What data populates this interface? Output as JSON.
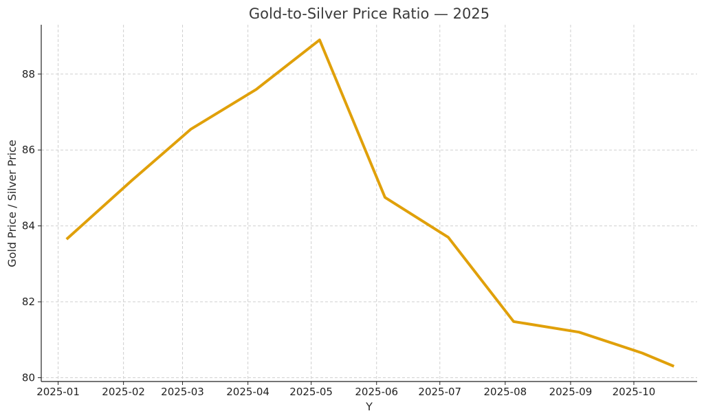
{
  "chart_data": {
    "type": "line",
    "title": "Gold-to-Silver Price Ratio — 2025",
    "xlabel": "Y",
    "ylabel": "Gold Price / Silver Price",
    "x_ticks": [
      "2025-01",
      "2025-02",
      "2025-03",
      "2025-04",
      "2025-05",
      "2025-06",
      "2025-07",
      "2025-08",
      "2025-09",
      "2025-10"
    ],
    "y_ticks": [
      80,
      82,
      84,
      86,
      88
    ],
    "ylim": [
      79.9,
      89.3
    ],
    "xlim": [
      "2024-12-24",
      "2025-10-31"
    ],
    "grid": true,
    "line_color": "#e0a00a",
    "series": [
      {
        "x": [
          "2025-01-05",
          "2025-02-05",
          "2025-03-05",
          "2025-04-05",
          "2025-05-05",
          "2025-06-05",
          "2025-07-05",
          "2025-08-05",
          "2025-09-05",
          "2025-10-05",
          "2025-10-20"
        ],
        "values": [
          83.65,
          85.2,
          86.55,
          87.6,
          88.9,
          84.75,
          83.7,
          81.48,
          81.2,
          80.65,
          80.3
        ]
      }
    ]
  }
}
